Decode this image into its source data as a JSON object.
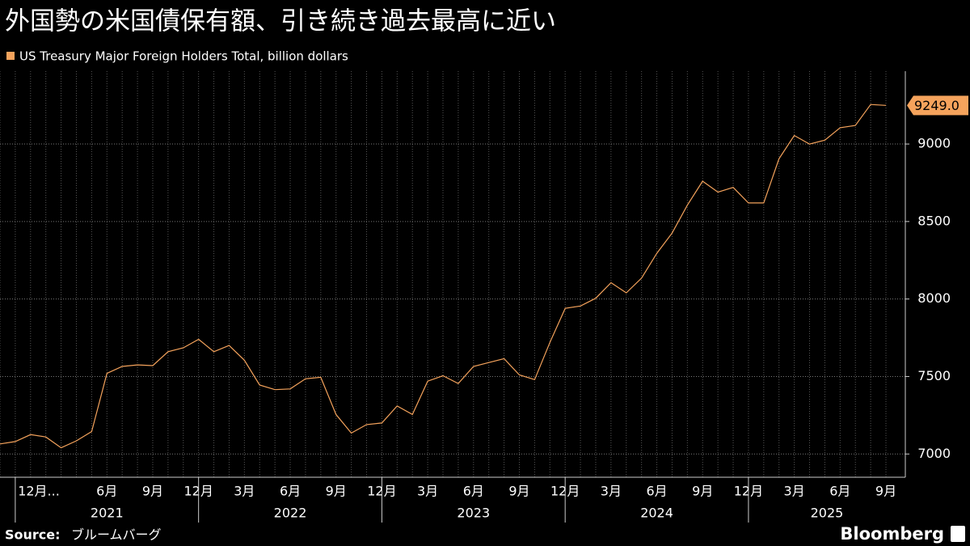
{
  "chart_data": {
    "type": "line",
    "title": "外国勢の米国債保有額、引き続き過去最高に近い",
    "source_label": "Source:",
    "source": "ブルームバーグ",
    "brand": "Bloomberg",
    "categories": [
      null,
      "12月...",
      null,
      null,
      null,
      null,
      null,
      "6月",
      null,
      null,
      "9月",
      null,
      null,
      "12月",
      null,
      null,
      "3月",
      null,
      null,
      "6月",
      null,
      null,
      "9月",
      null,
      null,
      "12月",
      null,
      null,
      "3月",
      null,
      null,
      "6月",
      null,
      null,
      "9月",
      null,
      null,
      "12月",
      null,
      null,
      "3月",
      null,
      null,
      "6月",
      null,
      null,
      "9月",
      null,
      null,
      "12月",
      null,
      null,
      "3月",
      null,
      null,
      "6月",
      null,
      null,
      "9月"
    ],
    "years": [
      "2021",
      "2022",
      "2023",
      "2024",
      "2025"
    ],
    "series": [
      {
        "name": "US Treasury Major Foreign Holders Total, billion dollars",
        "color": "#f5a35c",
        "values": [
          7065,
          7080,
          7125,
          7110,
          7040,
          7085,
          7145,
          7520,
          7565,
          7575,
          7570,
          7660,
          7685,
          7740,
          7660,
          7700,
          7605,
          7445,
          7415,
          7420,
          7485,
          7495,
          7255,
          7135,
          7190,
          7200,
          7310,
          7255,
          7470,
          7505,
          7455,
          7565,
          7590,
          7615,
          7510,
          7480,
          7720,
          7940,
          7955,
          8005,
          8105,
          8040,
          8135,
          8295,
          8425,
          8605,
          8760,
          8690,
          8720,
          8620,
          8620,
          8905,
          9055,
          9000,
          9025,
          9105,
          9120,
          9255,
          9249
        ],
        "value_labels": [
          null,
          null,
          null,
          null,
          null,
          null,
          null,
          null,
          null,
          null,
          null,
          null,
          null,
          null,
          null,
          null,
          null,
          null,
          null,
          null,
          null,
          null,
          null,
          null,
          null,
          null,
          null,
          null,
          null,
          null,
          null,
          null,
          null,
          null,
          null,
          null,
          null,
          null,
          null,
          null,
          null,
          null,
          null,
          null,
          null,
          null,
          null,
          null,
          null,
          null,
          null,
          null,
          null,
          null,
          null,
          null,
          null,
          null,
          "9249.0"
        ]
      }
    ],
    "ylim": [
      6850,
      9470
    ],
    "yticks": [
      7000,
      7500,
      8000,
      8500,
      9000
    ],
    "grid": true
  }
}
